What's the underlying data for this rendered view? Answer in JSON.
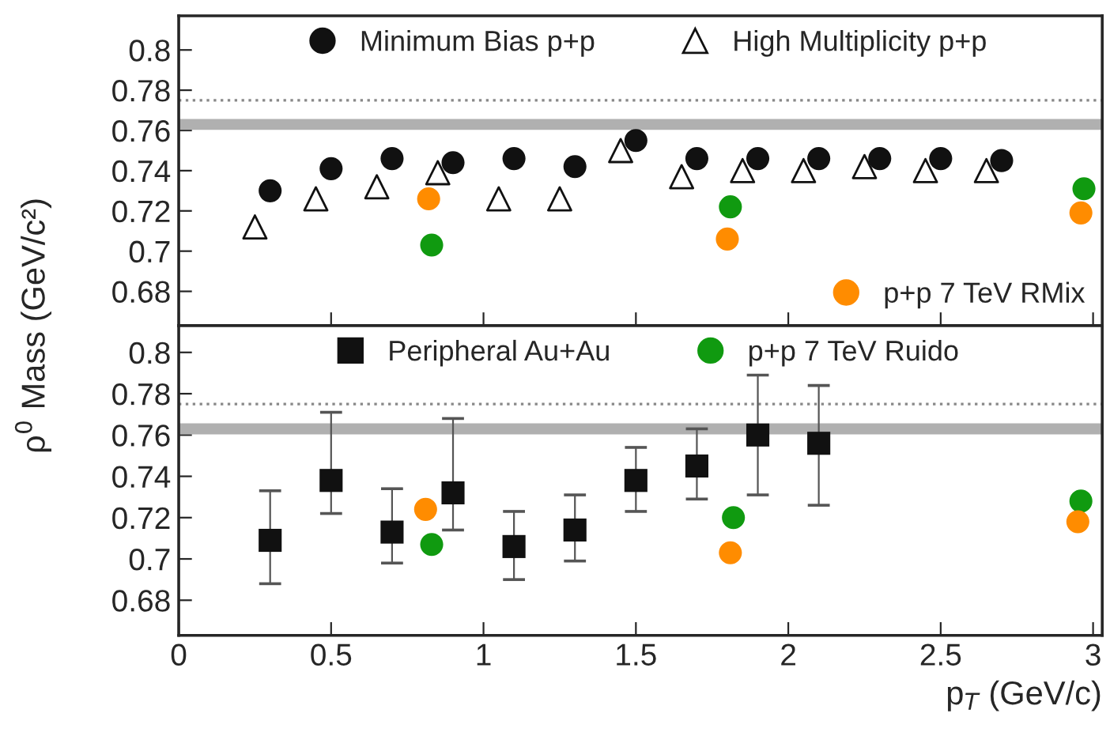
{
  "chart_data": [
    {
      "type": "scatter",
      "ylabel": "ρ$^{0}$ Mass (GeV/c²)",
      "xlim": [
        0,
        3.03
      ],
      "ylim": [
        0.663,
        0.817
      ],
      "xticks": [
        0,
        0.5,
        1,
        1.5,
        2,
        2.5,
        3
      ],
      "yticks": [
        0.68,
        0.7,
        0.72,
        0.74,
        0.76,
        0.78,
        0.8
      ],
      "tick_labels": "y",
      "legend": "top",
      "grid": false,
      "ref_lines": [
        {
          "axis": "y",
          "value": 0.763,
          "color": "#b0b0b0",
          "line_style": "solid"
        },
        {
          "axis": "y",
          "value": 0.775,
          "color": "#888888",
          "line_style": "dotted"
        }
      ],
      "series": [
        {
          "name": "Minimum Bias p+p",
          "color": "#111111",
          "marker": "circle",
          "x": [
            0.3,
            0.5,
            0.7,
            0.9,
            1.1,
            1.3,
            1.5,
            1.7,
            1.9,
            2.1,
            2.3,
            2.5,
            2.7
          ],
          "values": [
            0.73,
            0.741,
            0.746,
            0.744,
            0.746,
            0.742,
            0.755,
            0.746,
            0.746,
            0.746,
            0.746,
            0.746,
            0.745
          ]
        },
        {
          "name": "High Multiplicity p+p",
          "color": "#111111",
          "marker": "triangle",
          "x": [
            0.25,
            0.45,
            0.65,
            0.85,
            1.05,
            1.25,
            1.45,
            1.65,
            1.85,
            2.05,
            2.25,
            2.45,
            2.65
          ],
          "values": [
            0.712,
            0.726,
            0.732,
            0.739,
            0.726,
            0.726,
            0.75,
            0.737,
            0.74,
            0.74,
            0.742,
            0.74,
            0.74
          ]
        },
        {
          "name": "p+p 7 TeV RMix",
          "color": "#ff8c00",
          "marker": "circle",
          "x": [
            0.82,
            1.8,
            2.96
          ],
          "values": [
            0.726,
            0.706,
            0.719
          ]
        },
        {
          "color": "#109a10",
          "marker": "circle",
          "x": [
            0.83,
            1.81,
            2.97
          ],
          "values": [
            0.703,
            0.722,
            0.731
          ]
        }
      ]
    },
    {
      "type": "scatter",
      "xlabel": "p$_{T}$ (GeV/c)",
      "xlim": [
        0,
        3.03
      ],
      "ylim": [
        0.663,
        0.813
      ],
      "xticks": [
        0,
        0.5,
        1,
        1.5,
        2,
        2.5,
        3
      ],
      "yticks": [
        0.68,
        0.7,
        0.72,
        0.74,
        0.76,
        0.78,
        0.8
      ],
      "legend": "top",
      "grid": false,
      "ref_lines": [
        {
          "axis": "y",
          "value": 0.763,
          "color": "#b0b0b0",
          "line_style": "solid"
        },
        {
          "axis": "y",
          "value": 0.775,
          "color": "#888888",
          "line_style": "dotted"
        }
      ],
      "series": [
        {
          "name": "Peripheral Au+Au",
          "color": "#111111",
          "marker": "square",
          "x": [
            0.3,
            0.5,
            0.7,
            0.9,
            1.1,
            1.3,
            1.5,
            1.7,
            1.9,
            2.1
          ],
          "values": [
            0.709,
            0.738,
            0.713,
            0.732,
            0.706,
            0.714,
            0.738,
            0.745,
            0.76,
            0.756
          ],
          "errors": [
            [
              0.688,
              0.733
            ],
            [
              0.722,
              0.771
            ],
            [
              0.698,
              0.734
            ],
            [
              0.714,
              0.768
            ],
            [
              0.69,
              0.723
            ],
            [
              0.699,
              0.731
            ],
            [
              0.723,
              0.754
            ],
            [
              0.729,
              0.763
            ],
            [
              0.731,
              0.789
            ],
            [
              0.726,
              0.784
            ]
          ]
        },
        {
          "name": "p+p 7 TeV Ruido",
          "color": "#109a10",
          "marker": "circle",
          "x": [
            0.83,
            1.82,
            2.96
          ],
          "values": [
            0.707,
            0.72,
            0.728
          ]
        },
        {
          "color": "#ff8c00",
          "marker": "circle",
          "x": [
            0.81,
            1.81,
            2.95
          ],
          "values": [
            0.724,
            0.703,
            0.718
          ]
        }
      ]
    }
  ]
}
